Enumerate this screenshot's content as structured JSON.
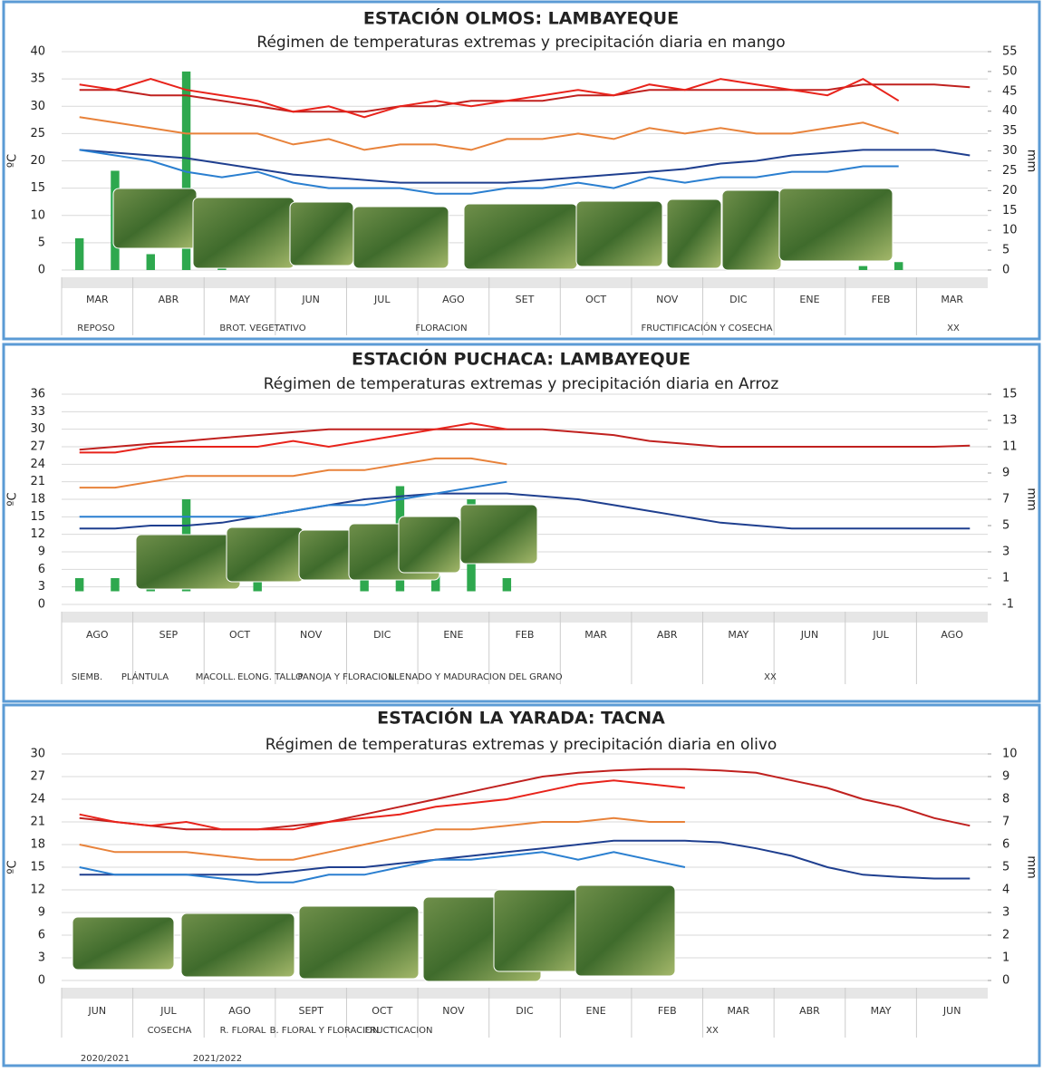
{
  "chart_data": [
    {
      "type": "line",
      "title": "ESTACIÓN OLMOS: LAMBAYEQUE",
      "subtitle": "Régimen de temperaturas extremas y precipitación diaria en mango",
      "y_label": "ºC",
      "y2_label": "mm",
      "categories": [
        "MAR",
        null,
        "ABR",
        null,
        "MAY",
        null,
        "JUN",
        null,
        "JUL",
        null,
        "AGO",
        null,
        "SET",
        null,
        "OCT",
        null,
        "NOV",
        null,
        "DIC",
        null,
        "ENE",
        null,
        "FEB",
        null,
        "MAR",
        null
      ],
      "ylim": [
        0,
        40
      ],
      "yticks": [
        0,
        5,
        10,
        15,
        20,
        25,
        30,
        35,
        40
      ],
      "y2lim": [
        0,
        55
      ],
      "y2ticks": [
        0,
        5,
        10,
        15,
        20,
        25,
        30,
        35,
        40,
        45,
        50,
        55
      ],
      "grid": true,
      "phases": [
        "REPOSO",
        "BROT. VEGETATIVO",
        "FLORACION",
        "FRUCTIFICACIÓN Y COSECHA",
        "XX"
      ],
      "series": [
        {
          "type": "bar",
          "axis": "y2",
          "color": "#2ea84e",
          "values": [
            8,
            25,
            4,
            50,
            1,
            0,
            0,
            0,
            0,
            0,
            0,
            0,
            0,
            0,
            0,
            0,
            0,
            0,
            0,
            0,
            0,
            0,
            1,
            2,
            null,
            null
          ]
        },
        {
          "color": "#c0211f",
          "values": [
            33,
            33,
            32,
            32,
            31,
            30,
            29,
            29,
            29,
            30,
            30,
            31,
            31,
            31,
            32,
            32,
            33,
            33,
            33,
            33,
            33,
            33,
            34,
            34,
            34,
            33.5
          ]
        },
        {
          "color": "#1f3f8f",
          "values": [
            22,
            21.5,
            21,
            20.5,
            19.5,
            18.5,
            17.5,
            17,
            16.5,
            16,
            16,
            16,
            16,
            16.5,
            17,
            17.5,
            18,
            18.5,
            19.5,
            20,
            21,
            21.5,
            22,
            22,
            22,
            21
          ]
        },
        {
          "color": "#e8231b",
          "values": [
            34,
            33,
            35,
            33,
            32,
            31,
            29,
            30,
            28,
            30,
            31,
            30,
            31,
            32,
            33,
            32,
            34,
            33,
            35,
            34,
            33,
            32,
            35,
            31,
            null,
            null
          ]
        },
        {
          "color": "#e8823a",
          "values": [
            28,
            27,
            26,
            25,
            25,
            25,
            23,
            24,
            22,
            23,
            23,
            22,
            24,
            24,
            25,
            24,
            26,
            25,
            26,
            25,
            25,
            26,
            27,
            25,
            null,
            null
          ]
        },
        {
          "color": "#2a7fd0",
          "values": [
            22,
            21,
            20,
            18,
            17,
            18,
            16,
            15,
            15,
            15,
            14,
            14,
            15,
            15,
            16,
            15,
            17,
            16,
            17,
            17,
            18,
            18,
            19,
            19,
            null,
            null
          ]
        }
      ]
    },
    {
      "type": "line",
      "title": "ESTACIÓN PUCHACA: LAMBAYEQUE",
      "subtitle": "Régimen de temperaturas extremas y precipitación diaria en Arroz",
      "y_label": "ºC",
      "y2_label": "mm",
      "categories": [
        "AGO",
        null,
        "SEP",
        null,
        "OCT",
        null,
        "NOV",
        null,
        "DIC",
        null,
        "ENE",
        null,
        "FEB",
        null,
        "MAR",
        null,
        "ABR",
        null,
        "MAY",
        null,
        "JUN",
        null,
        "JUL",
        null,
        "AGO",
        null
      ],
      "ylim": [
        0,
        36
      ],
      "yticks": [
        0,
        3,
        6,
        9,
        12,
        15,
        18,
        21,
        24,
        27,
        30,
        33,
        36
      ],
      "y2lim": [
        -1,
        15
      ],
      "y2ticks": [
        -1,
        1,
        3,
        5,
        7,
        9,
        11,
        13,
        15
      ],
      "grid": true,
      "phases": [
        "SIEMB.",
        "PLÁNTULA",
        "MACOLL.",
        "ELONG. TALLO",
        "PANOJA Y FLORACION",
        "LLENADO Y MADURACION DEL GRANO",
        "XX"
      ],
      "series": [
        {
          "type": "bar",
          "axis": "y2",
          "color": "#2ea84e",
          "values": [
            1,
            1,
            2,
            7,
            0,
            1,
            0,
            0,
            2,
            8,
            2,
            7,
            1,
            null,
            null,
            null,
            null,
            null,
            null,
            null,
            null,
            null,
            null,
            null,
            null,
            null
          ]
        },
        {
          "color": "#c0211f",
          "values": [
            26.5,
            27,
            27.5,
            28,
            28.5,
            29,
            29.5,
            30,
            30,
            30,
            30,
            30,
            30,
            30,
            29.5,
            29,
            28,
            27.5,
            27,
            27,
            27,
            27,
            27,
            27,
            27,
            27.2
          ]
        },
        {
          "color": "#1f3f8f",
          "values": [
            13,
            13,
            13.5,
            13.5,
            14,
            15,
            16,
            17,
            18,
            18.5,
            19,
            19,
            19,
            18.5,
            18,
            17,
            16,
            15,
            14,
            13.5,
            13,
            13,
            13,
            13,
            13,
            13
          ]
        },
        {
          "color": "#e8231b",
          "values": [
            26,
            26,
            27,
            27,
            27,
            27,
            28,
            27,
            28,
            29,
            30,
            31,
            30,
            null,
            null,
            null,
            null,
            null,
            null,
            null,
            null,
            null,
            null,
            null,
            null,
            null
          ]
        },
        {
          "color": "#e8823a",
          "values": [
            20,
            20,
            21,
            22,
            22,
            22,
            22,
            23,
            23,
            24,
            25,
            25,
            24,
            null,
            null,
            null,
            null,
            null,
            null,
            null,
            null,
            null,
            null,
            null,
            null,
            null
          ]
        },
        {
          "color": "#2a7fd0",
          "values": [
            15,
            15,
            15,
            15,
            15,
            15,
            16,
            17,
            17,
            18,
            19,
            20,
            21,
            null,
            null,
            null,
            null,
            null,
            null,
            null,
            null,
            null,
            null,
            null,
            null,
            null
          ]
        }
      ]
    },
    {
      "type": "line",
      "title": "ESTACIÓN LA YARADA: TACNA",
      "subtitle": "Régimen de temperaturas extremas y precipitación diaria en olivo",
      "y_label": "ºC",
      "y2_label": "mm",
      "categories": [
        "JUN",
        null,
        "JUL",
        null,
        "AGO",
        null,
        "SEPT",
        null,
        "OCT",
        null,
        "NOV",
        null,
        "DIC",
        null,
        "ENE",
        null,
        "FEB",
        null,
        "MAR",
        null,
        "ABR",
        null,
        "MAY",
        null,
        "JUN",
        null
      ],
      "ylim": [
        0,
        30
      ],
      "yticks": [
        0,
        3,
        6,
        9,
        12,
        15,
        18,
        21,
        24,
        27,
        30
      ],
      "y2lim": [
        0,
        10
      ],
      "y2ticks": [
        0,
        1,
        2,
        3,
        4,
        5,
        6,
        7,
        8,
        9,
        10
      ],
      "grid": true,
      "phases": [
        "COSECHA",
        "R. FLORAL",
        "B. FLORAL Y FLORACION",
        "FRUCTICACION",
        "XX",
        "2020/2021",
        "2021/2022"
      ],
      "series": [
        {
          "color": "#c0211f",
          "values": [
            21.5,
            21,
            20.5,
            20,
            20,
            20,
            20.5,
            21,
            22,
            23,
            24,
            25,
            26,
            27,
            27.5,
            27.8,
            28,
            28,
            27.8,
            27.5,
            26.5,
            25.5,
            24,
            23,
            21.5,
            20.5
          ]
        },
        {
          "color": "#1f3f8f",
          "values": [
            14,
            14,
            14,
            14,
            14,
            14,
            14.5,
            15,
            15,
            15.5,
            16,
            16.5,
            17,
            17.5,
            18,
            18.5,
            18.5,
            18.5,
            18.3,
            17.5,
            16.5,
            15,
            14,
            13.7,
            13.5,
            13.5
          ]
        },
        {
          "color": "#e8231b",
          "values": [
            22,
            21,
            20.5,
            21,
            20,
            20,
            20,
            21,
            21.5,
            22,
            23,
            23.5,
            24,
            25,
            26,
            26.5,
            26,
            25.5,
            null,
            null,
            null,
            null,
            null,
            null,
            null,
            null
          ]
        },
        {
          "color": "#e8823a",
          "values": [
            18,
            17,
            17,
            17,
            16.5,
            16,
            16,
            17,
            18,
            19,
            20,
            20,
            20.5,
            21,
            21,
            21.5,
            21,
            21,
            null,
            null,
            null,
            null,
            null,
            null,
            null,
            null
          ]
        },
        {
          "color": "#2a7fd0",
          "values": [
            15,
            14,
            14,
            14,
            13.5,
            13,
            13,
            14,
            14,
            15,
            16,
            16,
            16.5,
            17,
            16,
            17,
            16,
            15,
            null,
            null,
            null,
            null,
            null,
            null,
            null,
            null
          ]
        }
      ]
    }
  ]
}
